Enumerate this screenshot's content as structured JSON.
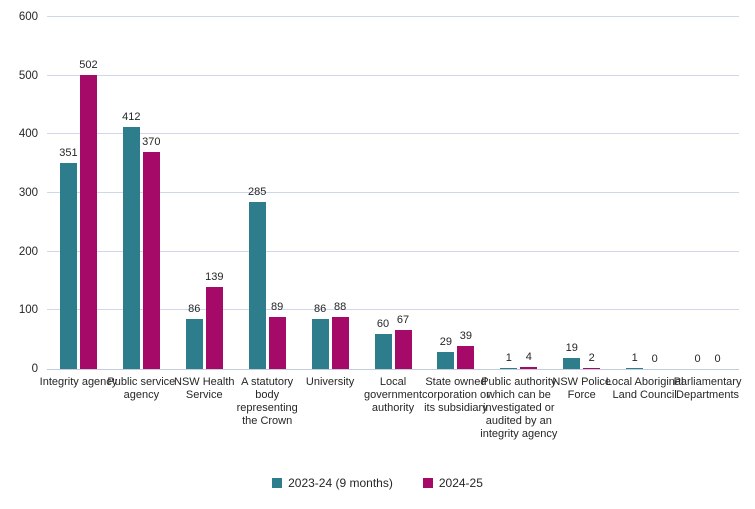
{
  "chart_data": {
    "type": "bar",
    "title": "",
    "xlabel": "",
    "ylabel": "",
    "categories": [
      "Integrity agency",
      "Public service agency",
      "NSW Health Service",
      "A statutory body representing the Crown",
      "University",
      "Local government authority",
      "State owned corporation or its subsidiary",
      "Public authority which can be investigated or audited by an integrity agency",
      "NSW Police Force",
      "Local Aboriginal Land Council",
      "Parliamentary Departments"
    ],
    "series": [
      {
        "name": "2023-24 (9 months)",
        "color": "#2E7D8C",
        "values": [
          351,
          412,
          86,
          285,
          86,
          60,
          29,
          1,
          19,
          1,
          0
        ]
      },
      {
        "name": "2024-25",
        "color": "#A50A69",
        "values": [
          502,
          370,
          139,
          89,
          88,
          67,
          39,
          4,
          2,
          0,
          0
        ]
      }
    ],
    "ylim": [
      0,
      600
    ],
    "yticks": [
      0,
      100,
      200,
      300,
      400,
      500,
      600
    ],
    "grid": true,
    "show_value_labels": true,
    "legend_position": "bottom",
    "colors": {
      "gridline": "#CFD8E8",
      "axis_line": "#C2CCDD",
      "text": "#262626"
    }
  }
}
